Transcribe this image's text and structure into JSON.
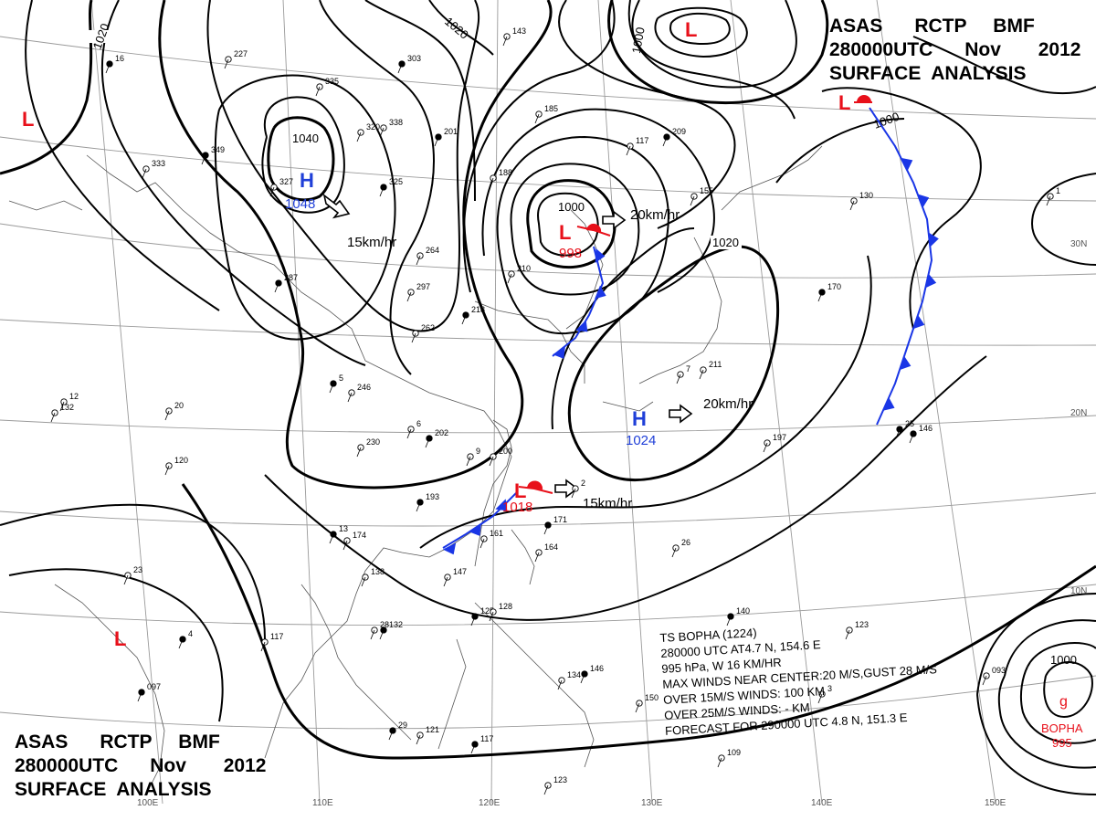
{
  "header": {
    "agency_line": "ASAS      RCTP     BMF",
    "time_line": "280000UTC      Nov       2012",
    "title_line": "SURFACE  ANALYSIS"
  },
  "colors": {
    "high": "#1f3fd8",
    "low": "#e8101a",
    "front": "#1a36e6",
    "isobar": "#000000",
    "grid": "#9a9a9a"
  },
  "lon_labels": [
    "100E",
    "110E",
    "120E",
    "130E",
    "140E",
    "150E"
  ],
  "lat_labels": [
    "30N",
    "20N",
    "10N"
  ],
  "pressure_centers": [
    {
      "type": "H",
      "value": "1048",
      "motion": "15km/hr"
    },
    {
      "type": "L",
      "value": "998",
      "motion": "20km/hr"
    },
    {
      "type": "H",
      "value": "1024",
      "motion": "20km/hr"
    },
    {
      "type": "L",
      "value": "1018",
      "motion": "15km/hr"
    },
    {
      "type": "L",
      "value": ""
    },
    {
      "type": "L",
      "value": ""
    },
    {
      "type": "L",
      "value": ""
    },
    {
      "type": "L",
      "value": ""
    }
  ],
  "isobar_labels": [
    "1020",
    "1040",
    "1000",
    "1020",
    "1000",
    "1000",
    "1020",
    "1000"
  ],
  "typhoon": {
    "name": "BOPHA",
    "pressure": "995",
    "symbol": "ɡ",
    "lines": [
      "TS  BOPHA  (1224)",
      "280000 UTC  AT4.7 N, 154.6 E",
      "995 hPa, W  16 KM/HR",
      "MAX WINDS NEAR CENTER:20 M/S,GUST 28 M/S",
      "OVER 15M/S WINDS: 100 KM",
      "OVER 25M/S WINDS: - KM",
      "FORECAST FOR 290000 UTC 4.8 N, 151.3 E"
    ]
  },
  "station_numbers": [
    "16",
    "227",
    "335",
    "303",
    "143",
    "185",
    "209",
    "117",
    "155",
    "349",
    "320",
    "338",
    "201",
    "188",
    "333",
    "325",
    "327",
    "264",
    "287",
    "297",
    "210",
    "218",
    "262",
    "246",
    "202",
    "230",
    "200",
    "193",
    "174",
    "138",
    "132",
    "117",
    "161",
    "171",
    "164",
    "147",
    "125",
    "128",
    "134",
    "146",
    "150",
    "121",
    "117",
    "109",
    "123",
    "097",
    "132",
    "120",
    "146",
    "197",
    "211",
    "170",
    "130",
    "123",
    "140",
    "093",
    "12",
    "25",
    "26",
    "23",
    "29",
    "28",
    "20",
    "13",
    "9",
    "6",
    "5",
    "2",
    "7",
    "4",
    "3",
    "1"
  ]
}
